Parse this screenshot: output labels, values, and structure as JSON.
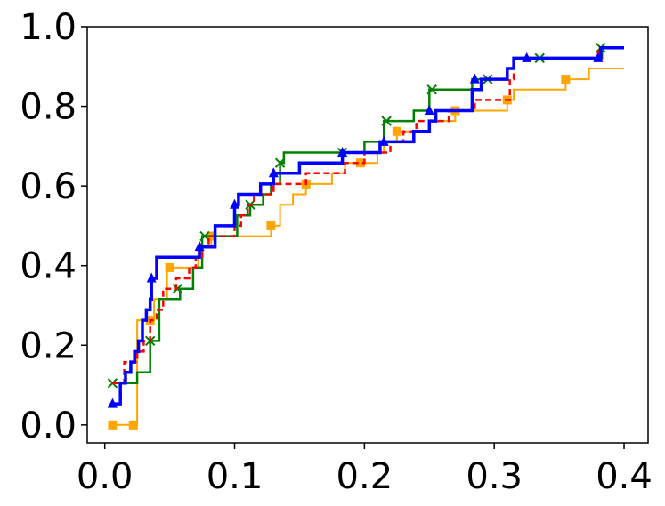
{
  "chart_data": {
    "type": "line",
    "title": "",
    "xlabel": "",
    "ylabel": "",
    "xlim": [
      -0.0135,
      0.4185
    ],
    "ylim": [
      -0.045,
      1.0
    ],
    "xticks": [
      0.0,
      0.1,
      0.2,
      0.3,
      0.4
    ],
    "xtick_labels": [
      "0.0",
      "0.1",
      "0.2",
      "0.3",
      "0.4"
    ],
    "yticks": [
      0.0,
      0.2,
      0.4,
      0.6,
      0.8,
      1.0
    ],
    "ytick_labels": [
      "0.0",
      "0.2",
      "0.4",
      "0.6",
      "0.8",
      "1.0"
    ],
    "grid": false,
    "legend": "none",
    "step": true,
    "series": [
      {
        "color": "#ffa500",
        "line_style": "solid",
        "line_width": 2,
        "marker": "square",
        "points": [
          [
            0.006,
            0.0
          ],
          [
            0.022,
            0.0
          ],
          [
            0.025,
            0.263
          ],
          [
            0.035,
            0.263
          ],
          [
            0.038,
            0.316
          ],
          [
            0.045,
            0.316
          ],
          [
            0.048,
            0.395
          ],
          [
            0.07,
            0.395
          ],
          [
            0.072,
            0.447
          ],
          [
            0.08,
            0.447
          ],
          [
            0.082,
            0.474
          ],
          [
            0.128,
            0.5
          ],
          [
            0.135,
            0.553
          ],
          [
            0.14,
            0.553
          ],
          [
            0.145,
            0.579
          ],
          [
            0.155,
            0.605
          ],
          [
            0.17,
            0.605
          ],
          [
            0.175,
            0.632
          ],
          [
            0.185,
            0.658
          ],
          [
            0.197,
            0.658
          ],
          [
            0.21,
            0.684
          ],
          [
            0.215,
            0.711
          ],
          [
            0.225,
            0.737
          ],
          [
            0.25,
            0.763
          ],
          [
            0.26,
            0.763
          ],
          [
            0.27,
            0.789
          ],
          [
            0.31,
            0.816
          ],
          [
            0.315,
            0.842
          ],
          [
            0.355,
            0.868
          ],
          [
            0.37,
            0.868
          ],
          [
            0.373,
            0.895
          ],
          [
            0.4,
            0.895
          ]
        ],
        "marker_points": [
          [
            0.006,
            0.0
          ],
          [
            0.022,
            0.0
          ],
          [
            0.035,
            0.263
          ],
          [
            0.05,
            0.395
          ],
          [
            0.082,
            0.474
          ],
          [
            0.128,
            0.5
          ],
          [
            0.155,
            0.605
          ],
          [
            0.197,
            0.658
          ],
          [
            0.225,
            0.737
          ],
          [
            0.27,
            0.789
          ],
          [
            0.31,
            0.816
          ],
          [
            0.355,
            0.868
          ]
        ]
      },
      {
        "color": "#008000",
        "line_style": "solid",
        "line_width": 2.5,
        "marker": "x",
        "points": [
          [
            0.006,
            0.105
          ],
          [
            0.022,
            0.105
          ],
          [
            0.025,
            0.132
          ],
          [
            0.033,
            0.132
          ],
          [
            0.035,
            0.211
          ],
          [
            0.04,
            0.211
          ],
          [
            0.042,
            0.316
          ],
          [
            0.055,
            0.316
          ],
          [
            0.058,
            0.342
          ],
          [
            0.068,
            0.395
          ],
          [
            0.075,
            0.474
          ],
          [
            0.1,
            0.474
          ],
          [
            0.102,
            0.526
          ],
          [
            0.11,
            0.526
          ],
          [
            0.112,
            0.553
          ],
          [
            0.12,
            0.553
          ],
          [
            0.122,
            0.579
          ],
          [
            0.128,
            0.605
          ],
          [
            0.135,
            0.658
          ],
          [
            0.138,
            0.684
          ],
          [
            0.18,
            0.684
          ],
          [
            0.183,
            0.684
          ],
          [
            0.2,
            0.711
          ],
          [
            0.215,
            0.763
          ],
          [
            0.235,
            0.763
          ],
          [
            0.238,
            0.789
          ],
          [
            0.248,
            0.789
          ],
          [
            0.25,
            0.842
          ],
          [
            0.28,
            0.842
          ],
          [
            0.283,
            0.868
          ],
          [
            0.3,
            0.868
          ],
          [
            0.31,
            0.895
          ],
          [
            0.315,
            0.921
          ],
          [
            0.38,
            0.921
          ],
          [
            0.383,
            0.947
          ],
          [
            0.4,
            0.947
          ]
        ],
        "marker_points": [
          [
            0.006,
            0.105
          ],
          [
            0.035,
            0.211
          ],
          [
            0.056,
            0.342
          ],
          [
            0.077,
            0.474
          ],
          [
            0.112,
            0.553
          ],
          [
            0.135,
            0.658
          ],
          [
            0.183,
            0.684
          ],
          [
            0.217,
            0.763
          ],
          [
            0.252,
            0.842
          ],
          [
            0.295,
            0.868
          ],
          [
            0.335,
            0.921
          ],
          [
            0.382,
            0.947
          ]
        ]
      },
      {
        "color": "#ff0000",
        "line_style": "dashed",
        "line_width": 2.5,
        "marker": "none",
        "points": [
          [
            0.006,
            0.105
          ],
          [
            0.015,
            0.158
          ],
          [
            0.02,
            0.158
          ],
          [
            0.025,
            0.184
          ],
          [
            0.03,
            0.211
          ],
          [
            0.035,
            0.263
          ],
          [
            0.04,
            0.289
          ],
          [
            0.045,
            0.342
          ],
          [
            0.05,
            0.342
          ],
          [
            0.055,
            0.368
          ],
          [
            0.065,
            0.395
          ],
          [
            0.07,
            0.421
          ],
          [
            0.075,
            0.447
          ],
          [
            0.08,
            0.474
          ],
          [
            0.095,
            0.474
          ],
          [
            0.1,
            0.5
          ],
          [
            0.105,
            0.526
          ],
          [
            0.11,
            0.553
          ],
          [
            0.115,
            0.579
          ],
          [
            0.125,
            0.579
          ],
          [
            0.13,
            0.605
          ],
          [
            0.15,
            0.605
          ],
          [
            0.155,
            0.632
          ],
          [
            0.18,
            0.632
          ],
          [
            0.185,
            0.658
          ],
          [
            0.2,
            0.684
          ],
          [
            0.22,
            0.711
          ],
          [
            0.23,
            0.737
          ],
          [
            0.24,
            0.763
          ],
          [
            0.26,
            0.763
          ],
          [
            0.265,
            0.789
          ],
          [
            0.28,
            0.789
          ],
          [
            0.285,
            0.816
          ],
          [
            0.31,
            0.816
          ],
          [
            0.312,
            0.868
          ],
          [
            0.315,
            0.921
          ],
          [
            0.37,
            0.921
          ],
          [
            0.38,
            0.947
          ],
          [
            0.4,
            0.947
          ]
        ],
        "marker_points": []
      },
      {
        "color": "#0000ff",
        "line_style": "solid",
        "line_width": 3.5,
        "marker": "triangle",
        "points": [
          [
            0.006,
            0.053
          ],
          [
            0.012,
            0.105
          ],
          [
            0.016,
            0.132
          ],
          [
            0.02,
            0.158
          ],
          [
            0.023,
            0.184
          ],
          [
            0.026,
            0.211
          ],
          [
            0.029,
            0.263
          ],
          [
            0.032,
            0.289
          ],
          [
            0.035,
            0.316
          ],
          [
            0.036,
            0.368
          ],
          [
            0.04,
            0.421
          ],
          [
            0.07,
            0.421
          ],
          [
            0.073,
            0.447
          ],
          [
            0.082,
            0.447
          ],
          [
            0.085,
            0.5
          ],
          [
            0.098,
            0.5
          ],
          [
            0.1,
            0.553
          ],
          [
            0.103,
            0.579
          ],
          [
            0.118,
            0.579
          ],
          [
            0.12,
            0.605
          ],
          [
            0.128,
            0.605
          ],
          [
            0.13,
            0.632
          ],
          [
            0.148,
            0.632
          ],
          [
            0.15,
            0.658
          ],
          [
            0.18,
            0.658
          ],
          [
            0.183,
            0.684
          ],
          [
            0.21,
            0.684
          ],
          [
            0.212,
            0.711
          ],
          [
            0.235,
            0.711
          ],
          [
            0.238,
            0.737
          ],
          [
            0.25,
            0.763
          ],
          [
            0.255,
            0.789
          ],
          [
            0.28,
            0.789
          ],
          [
            0.283,
            0.842
          ],
          [
            0.29,
            0.868
          ],
          [
            0.31,
            0.895
          ],
          [
            0.315,
            0.921
          ],
          [
            0.38,
            0.921
          ],
          [
            0.382,
            0.947
          ],
          [
            0.4,
            0.947
          ]
        ],
        "marker_points": [
          [
            0.006,
            0.053
          ],
          [
            0.036,
            0.368
          ],
          [
            0.073,
            0.447
          ],
          [
            0.1,
            0.553
          ],
          [
            0.13,
            0.632
          ],
          [
            0.183,
            0.684
          ],
          [
            0.215,
            0.711
          ],
          [
            0.25,
            0.789
          ],
          [
            0.285,
            0.868
          ],
          [
            0.325,
            0.921
          ],
          [
            0.38,
            0.921
          ]
        ]
      }
    ]
  }
}
